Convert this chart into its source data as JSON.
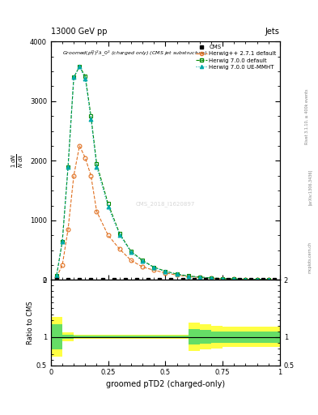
{
  "title_top_left": "13000 GeV pp",
  "title_top_right": "Jets",
  "plot_title_line1": "Groomed$(p_T^D)^2\\lambda_0^2$ (charged only) (CMS jet substructure)",
  "xlabel": "groomed pTD2 (charged-only)",
  "ylabel_ratio": "Ratio to CMS",
  "rivet_label": "Rivet 3.1.10, ≥ 400k events",
  "arxiv_label": "[arXiv:1306.3436]",
  "mcplots_label": "mcplots.cern.ch",
  "watermark": "CMS_2018_I1620897",
  "herwig_x": [
    0.025,
    0.05,
    0.075,
    0.1,
    0.125,
    0.15,
    0.175,
    0.2,
    0.25,
    0.3,
    0.35,
    0.4,
    0.45,
    0.5,
    0.55,
    0.6,
    0.65,
    0.7,
    0.75,
    0.8,
    0.85,
    0.9,
    0.95
  ],
  "herwig271_y": [
    50,
    250,
    850,
    1750,
    2250,
    2050,
    1750,
    1150,
    750,
    520,
    330,
    220,
    165,
    120,
    82,
    58,
    44,
    30,
    22,
    16,
    11,
    8,
    6
  ],
  "herwig700_y": [
    80,
    650,
    1900,
    3400,
    3580,
    3420,
    2750,
    1950,
    1280,
    780,
    480,
    330,
    215,
    148,
    100,
    68,
    50,
    34,
    25,
    18,
    13,
    9,
    6
  ],
  "herwig700ue_y": [
    80,
    650,
    1900,
    3400,
    3580,
    3380,
    2700,
    1900,
    1230,
    760,
    470,
    320,
    210,
    144,
    97,
    66,
    48,
    33,
    24,
    17,
    12,
    8,
    6
  ],
  "cms_x": [
    0.025,
    0.075,
    0.125,
    0.175,
    0.225,
    0.275,
    0.325,
    0.375,
    0.425,
    0.475,
    0.525,
    0.575,
    0.625,
    0.675,
    0.725,
    0.775,
    0.825,
    0.875,
    0.925,
    0.975
  ],
  "ratio_x_edges": [
    0.0,
    0.05,
    0.1,
    0.15,
    0.2,
    0.25,
    0.3,
    0.35,
    0.4,
    0.45,
    0.5,
    0.55,
    0.6,
    0.65,
    0.7,
    0.75,
    0.8,
    0.85,
    0.9,
    0.95,
    1.0
  ],
  "ratio_yellow_lo": [
    0.65,
    0.92,
    0.96,
    0.97,
    0.97,
    0.97,
    0.97,
    0.97,
    0.97,
    0.97,
    0.97,
    0.97,
    0.75,
    0.78,
    0.8,
    0.82,
    0.82,
    0.82,
    0.82,
    0.82,
    0.82
  ],
  "ratio_yellow_hi": [
    1.35,
    1.08,
    1.04,
    1.03,
    1.03,
    1.03,
    1.03,
    1.03,
    1.03,
    1.03,
    1.03,
    1.03,
    1.25,
    1.22,
    1.2,
    1.18,
    1.18,
    1.18,
    1.18,
    1.18,
    1.18
  ],
  "ratio_green_lo": [
    0.78,
    0.96,
    0.98,
    0.985,
    0.985,
    0.985,
    0.985,
    0.985,
    0.985,
    0.985,
    0.985,
    0.985,
    0.86,
    0.88,
    0.9,
    0.9,
    0.9,
    0.9,
    0.9,
    0.9,
    0.9
  ],
  "ratio_green_hi": [
    1.22,
    1.04,
    1.02,
    1.015,
    1.015,
    1.015,
    1.015,
    1.015,
    1.015,
    1.015,
    1.015,
    1.015,
    1.14,
    1.12,
    1.1,
    1.1,
    1.1,
    1.1,
    1.1,
    1.1,
    1.1
  ],
  "color_herwig271": "#e07020",
  "color_herwig700": "#008800",
  "color_herwig700ue": "#00aaaa",
  "ylim_main": [
    0,
    4000
  ],
  "ylim_ratio": [
    0.5,
    2.0
  ],
  "xlim": [
    0.0,
    1.0
  ]
}
